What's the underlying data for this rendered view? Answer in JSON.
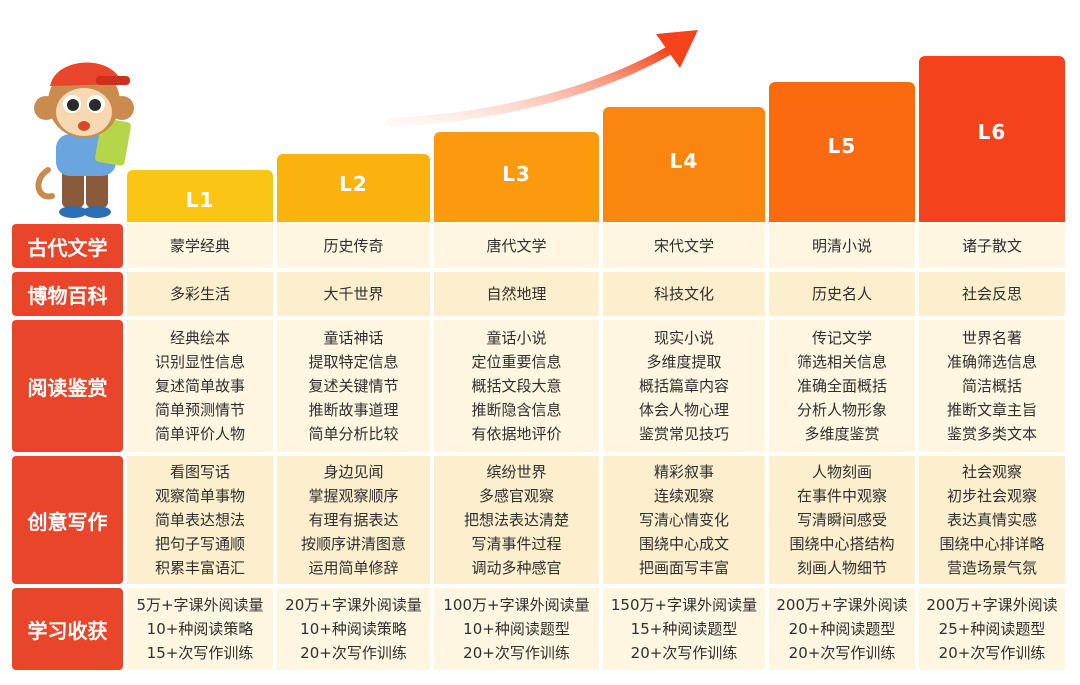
{
  "levels": [
    "L1",
    "L2",
    "L3",
    "L4",
    "L5",
    "L6"
  ],
  "colors": {
    "row_header": "#e8452a",
    "cell_bg": "#fff6e1",
    "cell_bg_alt": "#fdeecd",
    "level_colors": [
      "#fbc515",
      "#fbb10e",
      "#fb9a0e",
      "#fb860f",
      "#fb6a10",
      "#f4431c"
    ]
  },
  "rows": [
    {
      "label": "古代文学",
      "cells": [
        [
          "蒙学经典"
        ],
        [
          "历史传奇"
        ],
        [
          "唐代文学"
        ],
        [
          "宋代文学"
        ],
        [
          "明清小说"
        ],
        [
          "诸子散文"
        ]
      ]
    },
    {
      "label": "博物百科",
      "cells": [
        [
          "多彩生活"
        ],
        [
          "大千世界"
        ],
        [
          "自然地理"
        ],
        [
          "科技文化"
        ],
        [
          "历史名人"
        ],
        [
          "社会反思"
        ]
      ]
    },
    {
      "label": "阅读鉴赏",
      "cells": [
        [
          "经典绘本",
          "识别显性信息",
          "复述简单故事",
          "简单预测情节",
          "简单评价人物"
        ],
        [
          "童话神话",
          "提取特定信息",
          "复述关键情节",
          "推断故事道理",
          "简单分析比较"
        ],
        [
          "童话小说",
          "定位重要信息",
          "概括文段大意",
          "推断隐含信息",
          "有依据地评价"
        ],
        [
          "现实小说",
          "多维度提取",
          "概括篇章内容",
          "体会人物心理",
          "鉴赏常见技巧"
        ],
        [
          "传记文学",
          "筛选相关信息",
          "准确全面概括",
          "分析人物形象",
          "多维度鉴赏"
        ],
        [
          "世界名著",
          "准确筛选信息",
          "简洁概括",
          "推断文章主旨",
          "鉴赏多类文本"
        ]
      ]
    },
    {
      "label": "创意写作",
      "cells": [
        [
          "看图写话",
          "观察简单事物",
          "简单表达想法",
          "把句子写通顺",
          "积累丰富语汇"
        ],
        [
          "身边见闻",
          "掌握观察顺序",
          "有理有据表达",
          "按顺序讲清图意",
          "运用简单修辞"
        ],
        [
          "缤纷世界",
          "多感官观察",
          "把想法表达清楚",
          "写清事件过程",
          "调动多种感官"
        ],
        [
          "精彩叙事",
          "连续观察",
          "写清心情变化",
          "围绕中心成文",
          "把画面写丰富"
        ],
        [
          "人物刻画",
          "在事件中观察",
          "写清瞬间感受",
          "围绕中心搭结构",
          "刻画人物细节"
        ],
        [
          "社会观察",
          "初步社会观察",
          "表达真情实感",
          "围绕中心排详略",
          "营造场景气氛"
        ]
      ]
    },
    {
      "label": "学习收获",
      "cells": [
        [
          "5万+字课外阅读量",
          "10+种阅读策略",
          "15+次写作训练"
        ],
        [
          "20万+字课外阅读量",
          "10+种阅读策略",
          "20+次写作训练"
        ],
        [
          "100万+字课外阅读量",
          "10+种阅读题型",
          "20+次写作训练"
        ],
        [
          "150万+字课外阅读量",
          "15+种阅读题型",
          "20+次写作训练"
        ],
        [
          "200万+字课外阅读",
          "20+种阅读题型",
          "20+次写作训练"
        ],
        [
          "200万+字课外阅读",
          "25+种阅读题型",
          "20+次写作训练"
        ]
      ]
    }
  ]
}
